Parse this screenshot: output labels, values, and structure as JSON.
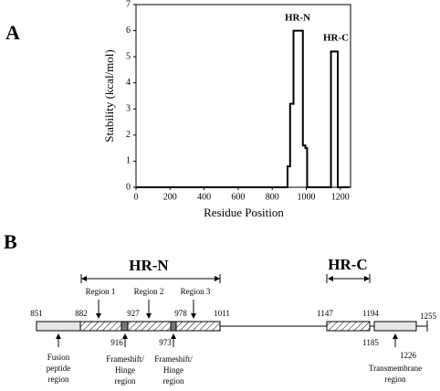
{
  "panel_labels": [
    "A",
    "B"
  ],
  "chart_data": {
    "type": "line",
    "x_label": "Residue Position",
    "y_label": "Stability (kcal/mol)",
    "annotations": [
      "HR-N",
      "HR-C"
    ],
    "x": [
      0,
      890,
      890,
      905,
      905,
      925,
      925,
      980,
      980,
      995,
      995,
      1005,
      1005,
      1145,
      1145,
      1185,
      1185,
      1255
    ],
    "values": [
      0,
      0,
      0.8,
      0.8,
      3.2,
      3.2,
      6.0,
      6.0,
      1.6,
      1.6,
      1.5,
      1.5,
      0,
      0,
      5.2,
      5.2,
      0,
      0
    ],
    "color": "#000000",
    "xlim": [
      0,
      1260
    ],
    "xticks": [
      0,
      200,
      400,
      600,
      800,
      1000,
      1200
    ],
    "ylim": [
      0,
      7
    ],
    "yticks": [
      0,
      1,
      2,
      3,
      4,
      5,
      6,
      7
    ],
    "grid": false
  },
  "diagram": {
    "domain_labels": [
      "HR-N",
      "HR-C"
    ],
    "upper_numbers": [
      851,
      882,
      927,
      978,
      1011,
      1147,
      1194,
      1255
    ],
    "lower_numbers": [
      916,
      973,
      1185,
      1226
    ],
    "region_labels": [
      "Region 1",
      "Region 2",
      "Region 3"
    ],
    "feature_labels": [
      [
        "Fusion",
        "peptide",
        "region"
      ],
      [
        "Frameshift/",
        "Hinge",
        "region"
      ],
      [
        "Frameshift/",
        "Hinge",
        "region"
      ],
      [
        "Transmembrane",
        "region"
      ]
    ]
  }
}
